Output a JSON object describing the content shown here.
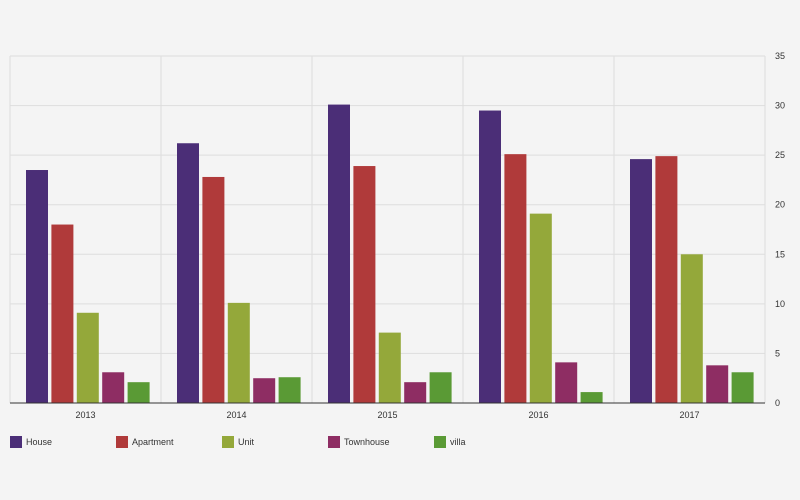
{
  "chart_data": {
    "type": "bar",
    "categories": [
      "2013",
      "2014",
      "2015",
      "2016",
      "2017"
    ],
    "series": [
      {
        "name": "House",
        "color": "#4b2e77",
        "values": [
          23.5,
          26.2,
          30.1,
          29.5,
          24.6
        ]
      },
      {
        "name": "Apartment",
        "color": "#b03a3a",
        "values": [
          18.0,
          22.8,
          23.9,
          25.1,
          24.9
        ]
      },
      {
        "name": "Unit",
        "color": "#94a83a",
        "values": [
          9.1,
          10.1,
          7.1,
          19.1,
          15.0
        ]
      },
      {
        "name": "Townhouse",
        "color": "#8e2d63",
        "values": [
          3.1,
          2.5,
          2.1,
          4.1,
          3.8
        ]
      },
      {
        "name": "villa",
        "color": "#5a9a35",
        "values": [
          2.1,
          2.6,
          3.1,
          1.1,
          3.1
        ]
      }
    ],
    "y_ticks": [
      "0",
      "5",
      "10",
      "15",
      "20",
      "25",
      "30",
      "35"
    ],
    "ylim": [
      0,
      35
    ],
    "grid": true,
    "legend_position": "bottom-left"
  }
}
